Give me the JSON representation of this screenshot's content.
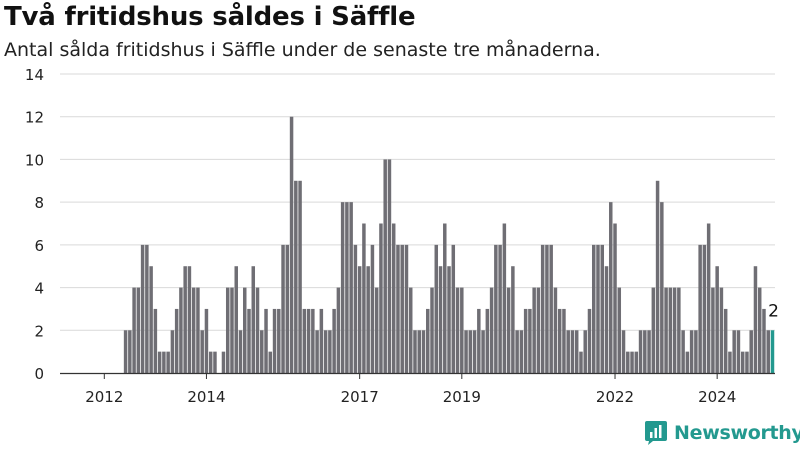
{
  "title": "Två fritidshus såldes i Säffle",
  "subtitle": "Antal sålda fritidshus i Säffle under de senaste tre månaderna.",
  "brand": "Newsworthy",
  "colors": {
    "bar": "#6f6e74",
    "highlight": "#23998f",
    "grid": "#d9d9d9",
    "axis": "#333333"
  },
  "chart_data": {
    "type": "bar",
    "title": "Två fritidshus såldes i Säffle",
    "xlabel": "",
    "ylabel": "",
    "ylim": [
      0,
      14
    ],
    "yticks": [
      0,
      2,
      4,
      6,
      8,
      10,
      12,
      14
    ],
    "xticks": [
      "2012",
      "2014",
      "2017",
      "2019",
      "2022",
      "2024"
    ],
    "grid": "horizontal",
    "first_period": "2011-10",
    "last_period": "2024-12",
    "values": [
      0,
      0,
      0,
      0,
      0,
      0,
      0,
      0,
      2,
      2,
      4,
      4,
      6,
      6,
      5,
      3,
      1,
      1,
      1,
      2,
      3,
      4,
      5,
      5,
      4,
      4,
      2,
      3,
      1,
      1,
      0,
      1,
      4,
      4,
      5,
      2,
      4,
      3,
      5,
      4,
      2,
      3,
      1,
      3,
      3,
      6,
      6,
      12,
      9,
      9,
      3,
      3,
      3,
      2,
      3,
      2,
      2,
      3,
      4,
      8,
      8,
      8,
      6,
      5,
      7,
      5,
      6,
      4,
      7,
      10,
      10,
      7,
      6,
      6,
      6,
      4,
      2,
      2,
      2,
      3,
      4,
      6,
      5,
      7,
      5,
      6,
      4,
      4,
      2,
      2,
      2,
      3,
      2,
      3,
      4,
      6,
      6,
      7,
      4,
      5,
      2,
      2,
      3,
      3,
      4,
      4,
      6,
      6,
      6,
      4,
      3,
      3,
      2,
      2,
      2,
      1,
      2,
      3,
      6,
      6,
      6,
      5,
      8,
      7,
      4,
      2,
      1,
      1,
      1,
      2,
      2,
      2,
      4,
      9,
      8,
      4,
      4,
      4,
      4,
      2,
      1,
      2,
      2,
      6,
      6,
      7,
      4,
      5,
      4,
      3,
      1,
      2,
      2,
      1,
      1,
      2,
      5,
      4,
      3,
      2,
      2
    ],
    "highlight_last": true,
    "annotation": "2"
  }
}
